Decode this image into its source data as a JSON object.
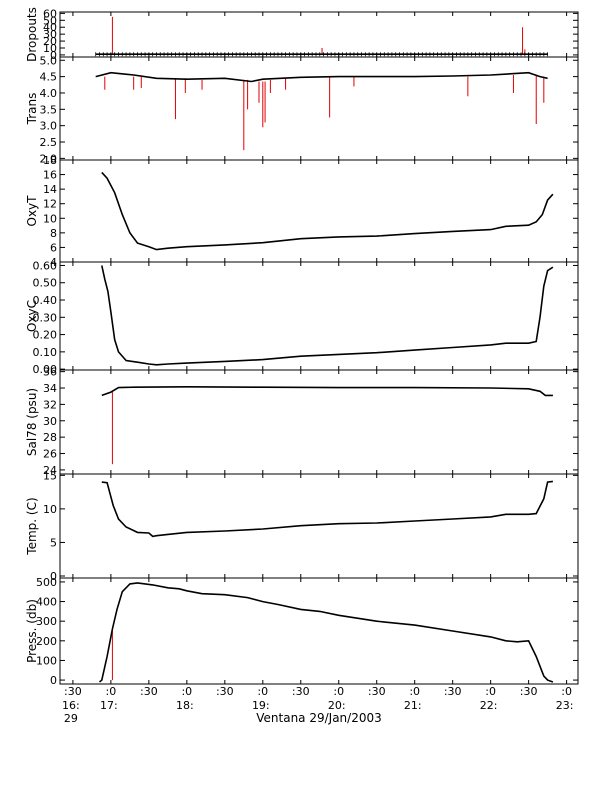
{
  "xaxis": {
    "tick_labels": [
      {
        "top": ":30",
        "bottom": "16:",
        "third": "29",
        "t": -0.5
      },
      {
        "top": ":0",
        "bottom": "17:",
        "third": "",
        "t": 0
      },
      {
        "top": ":30",
        "bottom": "",
        "third": "",
        "t": 0.5
      },
      {
        "top": ":0",
        "bottom": "18:",
        "third": "",
        "t": 1
      },
      {
        "top": ":30",
        "bottom": "",
        "third": "",
        "t": 1.5
      },
      {
        "top": ":0",
        "bottom": "19:",
        "third": "",
        "t": 2
      },
      {
        "top": ":30",
        "bottom": "",
        "third": "",
        "t": 2.5
      },
      {
        "top": ":0",
        "bottom": "20:",
        "third": "",
        "t": 3
      },
      {
        "top": ":30",
        "bottom": "",
        "third": "",
        "t": 3.5
      },
      {
        "top": ":0",
        "bottom": "21:",
        "third": "",
        "t": 4
      },
      {
        "top": ":30",
        "bottom": "",
        "third": "",
        "t": 4.5
      },
      {
        "top": ":0",
        "bottom": "22:",
        "third": "",
        "t": 5
      },
      {
        "top": ":30",
        "bottom": "",
        "third": "",
        "t": 5.5
      },
      {
        "top": ":0",
        "bottom": "23:",
        "third": "",
        "t": 6
      }
    ],
    "title": "Ventana 29/Jan/2003",
    "range_hours_after_17": [
      -0.67,
      6.15
    ]
  },
  "chart_data": [
    {
      "type": "line",
      "ylabel": "Dropouts",
      "ylim": [
        -3,
        62
      ],
      "yticks": [
        0,
        10,
        20,
        30,
        40,
        50,
        60
      ],
      "x": [
        -0.2,
        0,
        1,
        2,
        3,
        4,
        5,
        5.75
      ],
      "values": [
        1,
        1,
        1,
        1,
        1,
        1,
        1,
        1
      ],
      "spikes": [
        {
          "x": 0.02,
          "from": 1,
          "to": 55
        },
        {
          "x": 2.78,
          "from": 1,
          "to": 10
        },
        {
          "x": 5.42,
          "from": 1,
          "to": 40
        },
        {
          "x": 5.45,
          "from": 1,
          "to": 8
        }
      ],
      "markers": true
    },
    {
      "type": "line",
      "ylabel": "Trans",
      "ylim": [
        1.95,
        5.1
      ],
      "yticks": [
        2.0,
        2.5,
        3.0,
        3.5,
        4.0,
        4.5,
        5.0
      ],
      "ytick_labels": [
        "2.0",
        "2.5",
        "3.0",
        "3.5",
        "4.0",
        "4.5",
        "5.0"
      ],
      "x": [
        -0.2,
        0,
        0.3,
        0.6,
        1,
        1.5,
        1.85,
        2,
        2.5,
        3,
        3.5,
        4,
        4.5,
        5,
        5.5,
        5.65,
        5.75
      ],
      "values": [
        4.5,
        4.62,
        4.55,
        4.45,
        4.42,
        4.45,
        4.35,
        4.42,
        4.48,
        4.5,
        4.5,
        4.5,
        4.52,
        4.55,
        4.62,
        4.5,
        4.45
      ],
      "spikes": [
        {
          "x": -0.08,
          "from": 4.5,
          "to": 4.1
        },
        {
          "x": 0.3,
          "from": 4.5,
          "to": 4.1
        },
        {
          "x": 0.4,
          "from": 4.5,
          "to": 4.15
        },
        {
          "x": 0.85,
          "from": 4.45,
          "to": 3.2
        },
        {
          "x": 0.98,
          "from": 4.45,
          "to": 4.0
        },
        {
          "x": 1.2,
          "from": 4.4,
          "to": 4.1
        },
        {
          "x": 1.75,
          "from": 4.4,
          "to": 2.25
        },
        {
          "x": 1.8,
          "from": 4.4,
          "to": 3.5
        },
        {
          "x": 1.95,
          "from": 4.35,
          "to": 3.7
        },
        {
          "x": 2.0,
          "from": 4.35,
          "to": 2.95
        },
        {
          "x": 2.03,
          "from": 4.35,
          "to": 3.1
        },
        {
          "x": 2.1,
          "from": 4.4,
          "to": 4.0
        },
        {
          "x": 2.3,
          "from": 4.45,
          "to": 4.1
        },
        {
          "x": 2.88,
          "from": 4.5,
          "to": 3.25
        },
        {
          "x": 3.2,
          "from": 4.5,
          "to": 4.2
        },
        {
          "x": 4.7,
          "from": 4.5,
          "to": 3.9
        },
        {
          "x": 5.3,
          "from": 4.55,
          "to": 4.0
        },
        {
          "x": 5.6,
          "from": 4.55,
          "to": 3.05
        },
        {
          "x": 5.7,
          "from": 4.5,
          "to": 3.7
        }
      ]
    },
    {
      "type": "line",
      "ylabel": "OxyT",
      "ylim": [
        4,
        18
      ],
      "yticks": [
        4,
        6,
        8,
        10,
        12,
        14,
        16,
        18
      ],
      "x": [
        -0.12,
        -0.05,
        0.05,
        0.15,
        0.25,
        0.35,
        0.5,
        0.6,
        0.75,
        1,
        1.5,
        2,
        2.5,
        3,
        3.5,
        4,
        4.5,
        5,
        5.2,
        5.5,
        5.6,
        5.68,
        5.75,
        5.82
      ],
      "values": [
        16.3,
        15.5,
        13.5,
        10.5,
        8.0,
        6.6,
        6.1,
        5.7,
        5.9,
        6.1,
        6.35,
        6.65,
        7.2,
        7.45,
        7.55,
        7.9,
        8.2,
        8.45,
        8.9,
        9.05,
        9.5,
        10.5,
        12.5,
        13.3
      ]
    },
    {
      "type": "line",
      "ylabel": "OxyC",
      "ylim": [
        -0.005,
        0.62
      ],
      "yticks": [
        0,
        0.1,
        0.2,
        0.3,
        0.4,
        0.5,
        0.6
      ],
      "ytick_labels": [
        "0.00",
        "0.10",
        "0.20",
        "0.30",
        "0.40",
        "0.50",
        "0.60"
      ],
      "x": [
        -0.12,
        -0.08,
        -0.04,
        0,
        0.05,
        0.1,
        0.2,
        0.35,
        0.5,
        0.6,
        0.75,
        1,
        1.5,
        2,
        2.5,
        3,
        3.5,
        4,
        4.5,
        5,
        5.2,
        5.5,
        5.6,
        5.65,
        5.7,
        5.75,
        5.82
      ],
      "values": [
        0.6,
        0.52,
        0.45,
        0.33,
        0.17,
        0.1,
        0.05,
        0.04,
        0.03,
        0.025,
        0.03,
        0.035,
        0.045,
        0.055,
        0.075,
        0.085,
        0.095,
        0.11,
        0.125,
        0.14,
        0.15,
        0.15,
        0.16,
        0.3,
        0.48,
        0.57,
        0.59
      ]
    },
    {
      "type": "line",
      "ylabel": "Sal78 (psu)",
      "ylim": [
        23.5,
        36.2
      ],
      "yticks": [
        24,
        26,
        28,
        30,
        32,
        34,
        36
      ],
      "x": [
        -0.12,
        0,
        0.1,
        0.3,
        1,
        2,
        3,
        4,
        5,
        5.5,
        5.65,
        5.72,
        5.82
      ],
      "values": [
        33.1,
        33.5,
        34.05,
        34.1,
        34.15,
        34.1,
        34.05,
        34.05,
        34.0,
        33.9,
        33.6,
        33.1,
        33.1
      ],
      "spikes": [
        {
          "x": 0.02,
          "from": 33.7,
          "to": 24.7
        }
      ]
    },
    {
      "type": "line",
      "ylabel": "Temp. (C)",
      "ylim": [
        -0.3,
        15.2
      ],
      "yticks": [
        0,
        5,
        10,
        15
      ],
      "x": [
        -0.12,
        -0.05,
        0.03,
        0.1,
        0.2,
        0.35,
        0.5,
        0.55,
        0.6,
        0.75,
        1,
        1.5,
        2,
        2.5,
        3,
        3.5,
        4,
        4.5,
        5,
        5.2,
        5.5,
        5.6,
        5.7,
        5.75,
        5.82
      ],
      "values": [
        14.0,
        13.9,
        10.5,
        8.5,
        7.3,
        6.5,
        6.4,
        5.9,
        6.0,
        6.2,
        6.5,
        6.7,
        7.0,
        7.5,
        7.8,
        7.9,
        8.2,
        8.5,
        8.8,
        9.2,
        9.2,
        9.3,
        11.5,
        14.0,
        14.1
      ]
    },
    {
      "type": "line",
      "ylabel": "Press. (db)",
      "ylim": [
        -20,
        520
      ],
      "yticks": [
        0,
        100,
        200,
        300,
        400,
        500
      ],
      "x": [
        -0.15,
        -0.12,
        -0.05,
        0.02,
        0.08,
        0.15,
        0.25,
        0.35,
        0.55,
        0.75,
        0.9,
        1,
        1.2,
        1.5,
        1.8,
        2,
        2.2,
        2.5,
        2.75,
        3,
        3.5,
        4,
        4.5,
        5,
        5.2,
        5.35,
        5.5,
        5.6,
        5.7,
        5.75,
        5.82
      ],
      "values": [
        -10,
        0,
        120,
        260,
        360,
        450,
        490,
        495,
        485,
        470,
        465,
        455,
        440,
        435,
        420,
        400,
        385,
        360,
        350,
        330,
        300,
        280,
        250,
        220,
        200,
        195,
        200,
        120,
        20,
        0,
        -10
      ],
      "spikes": [
        {
          "x": 0.02,
          "from": 0,
          "to": 250
        }
      ]
    }
  ]
}
